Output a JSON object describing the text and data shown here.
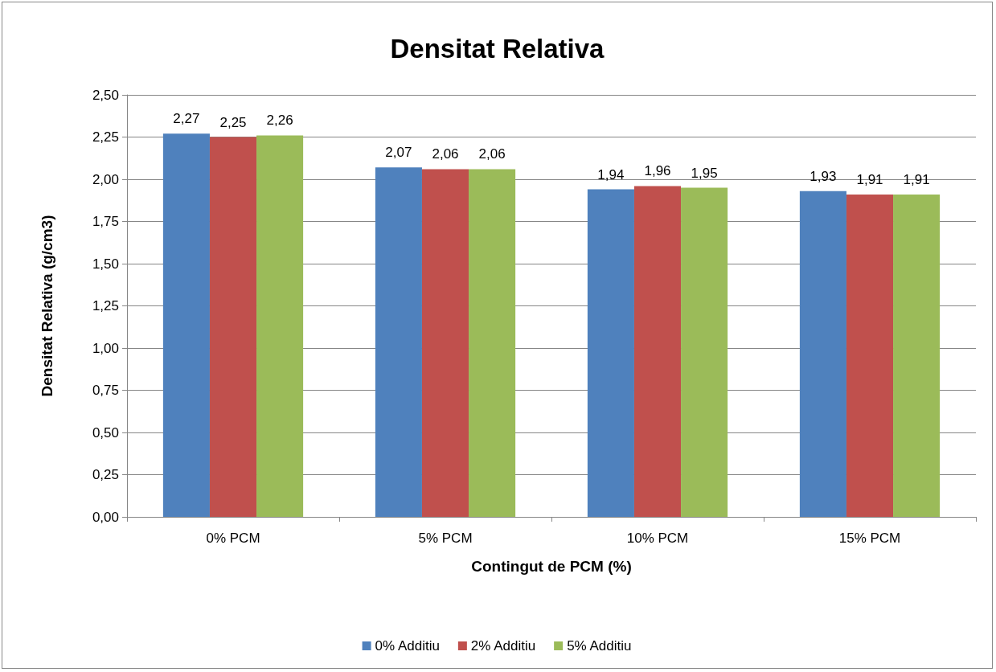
{
  "chart_data": {
    "type": "bar",
    "title": "Densitat Relativa",
    "xlabel": "Contingut de PCM (%)",
    "ylabel": "Densitat Relativa (g/cm3)",
    "categories": [
      "0% PCM",
      "5% PCM",
      "10% PCM",
      "15% PCM"
    ],
    "series": [
      {
        "name": "0% Additiu",
        "color": "#4f81bd",
        "values": [
          2.27,
          2.07,
          1.94,
          1.93
        ],
        "value_labels": [
          "2,27",
          "2,07",
          "1,94",
          "1,93"
        ]
      },
      {
        "name": "2% Additiu",
        "color": "#c0504d",
        "values": [
          2.25,
          2.06,
          1.96,
          1.91
        ],
        "value_labels": [
          "2,25",
          "2,06",
          "1,96",
          "1,91"
        ]
      },
      {
        "name": "5% Additiu",
        "color": "#9bbb59",
        "values": [
          2.26,
          2.06,
          1.95,
          1.91
        ],
        "value_labels": [
          "2,26",
          "2,06",
          "1,95",
          "1,91"
        ]
      }
    ],
    "ylim": [
      0,
      2.5
    ],
    "yticks": [
      {
        "value": 0,
        "label": "0,00"
      },
      {
        "value": 0.25,
        "label": "0,25"
      },
      {
        "value": 0.5,
        "label": "0,50"
      },
      {
        "value": 0.75,
        "label": "0,75"
      },
      {
        "value": 1,
        "label": "1,00"
      },
      {
        "value": 1.25,
        "label": "1,25"
      },
      {
        "value": 1.5,
        "label": "1,50"
      },
      {
        "value": 1.75,
        "label": "1,75"
      },
      {
        "value": 2,
        "label": "2,00"
      },
      {
        "value": 2.25,
        "label": "2,25"
      },
      {
        "value": 2.5,
        "label": "2,50"
      }
    ],
    "grid": "y",
    "legend": "bottom"
  }
}
